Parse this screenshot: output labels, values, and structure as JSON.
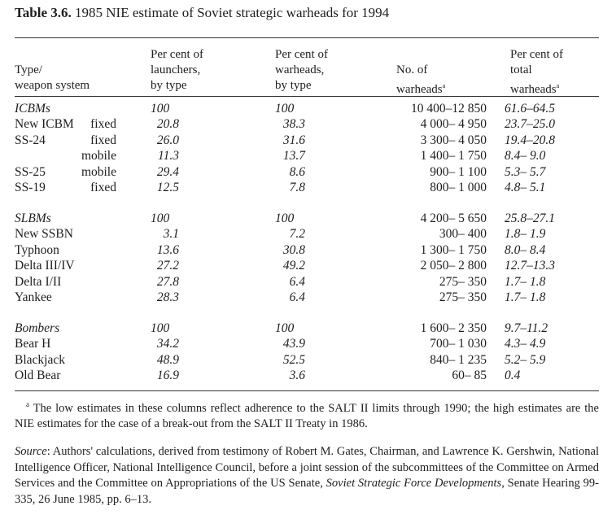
{
  "title": {
    "label": "Table 3.6.",
    "text": "1985 NIE estimate of Soviet strategic warheads for 1994"
  },
  "headers": {
    "type": [
      "Type/",
      "weapon system"
    ],
    "launchers": [
      "Per cent of",
      "launchers,",
      "by type"
    ],
    "warheads": [
      "Per cent of",
      "warheads,",
      "by type"
    ],
    "number": [
      "No. of",
      "warheads"
    ],
    "number_note": "a",
    "total": [
      "Per cent of",
      "total",
      "warheads"
    ],
    "total_note": "a"
  },
  "groups": [
    {
      "rows": [
        {
          "type": "ICBMs",
          "sub": "",
          "launchers": "100",
          "warheads": "100",
          "number": "10 400–12 850",
          "total": "61.6–64.5",
          "group": true
        },
        {
          "type": "New ICBM",
          "sub": "fixed",
          "launchers": "20.8",
          "warheads": "38.3",
          "number": "4 000– 4 950",
          "total": "23.7–25.0"
        },
        {
          "type": "SS-24",
          "sub": "fixed",
          "launchers": "26.0",
          "warheads": "31.6",
          "number": "3 300– 4 050",
          "total": "19.4–20.8"
        },
        {
          "type": "",
          "sub": "mobile",
          "launchers": "11.3",
          "warheads": "13.7",
          "number": "1 400– 1 750",
          "total": "8.4– 9.0"
        },
        {
          "type": "SS-25",
          "sub": "mobile",
          "launchers": "29.4",
          "warheads": "8.6",
          "number": "900– 1 100",
          "total": "5.3– 5.7"
        },
        {
          "type": "SS-19",
          "sub": "fixed",
          "launchers": "12.5",
          "warheads": "7.8",
          "number": "800– 1 000",
          "total": "4.8– 5.1"
        }
      ]
    },
    {
      "rows": [
        {
          "type": "SLBMs",
          "sub": "",
          "launchers": "100",
          "warheads": "100",
          "number": "4 200– 5 650",
          "total": "25.8–27.1",
          "group": true
        },
        {
          "type": "New SSBN",
          "sub": "",
          "launchers": "3.1",
          "warheads": "7.2",
          "number": "300– 400",
          "total": "1.8– 1.9"
        },
        {
          "type": "Typhoon",
          "sub": "",
          "launchers": "13.6",
          "warheads": "30.8",
          "number": "1 300– 1 750",
          "total": "8.0– 8.4"
        },
        {
          "type": "Delta III/IV",
          "sub": "",
          "launchers": "27.2",
          "warheads": "49.2",
          "number": "2 050– 2 800",
          "total": "12.7–13.3"
        },
        {
          "type": "Delta I/II",
          "sub": "",
          "launchers": "27.8",
          "warheads": "6.4",
          "number": "275– 350",
          "total": "1.7– 1.8"
        },
        {
          "type": "Yankee",
          "sub": "",
          "launchers": "28.3",
          "warheads": "6.4",
          "number": "275– 350",
          "total": "1.7– 1.8"
        }
      ]
    },
    {
      "rows": [
        {
          "type": "Bombers",
          "sub": "",
          "launchers": "100",
          "warheads": "100",
          "number": "1 600– 2 350",
          "total": "9.7–11.2",
          "group": true
        },
        {
          "type": "Bear H",
          "sub": "",
          "launchers": "34.2",
          "warheads": "43.9",
          "number": "700– 1 030",
          "total": "4.3– 4.9"
        },
        {
          "type": "Blackjack",
          "sub": "",
          "launchers": "48.9",
          "warheads": "52.5",
          "number": "840– 1 235",
          "total": "5.2– 5.9"
        },
        {
          "type": "Old Bear",
          "sub": "",
          "launchers": "16.9",
          "warheads": "3.6",
          "number": "60– 85",
          "total": "0.4"
        }
      ]
    }
  ],
  "footnote": {
    "mark": "a",
    "text": "The low estimates in these columns reflect adherence to the SALT II limits through 1990; the high estimates are the NIE estimates for the case of a break-out from the SALT II Treaty in 1986."
  },
  "source": {
    "label": "Source",
    "text_before": ": Authors' calculations, derived from testimony of Robert M. Gates, Chairman, and Lawrence K. Gershwin, National Intelligence Officer, National Intelligence Council, before a joint session of the subcommittees of the Committee on Armed Services and the Committee on Appropriations of the US Senate, ",
    "title": "Soviet Strategic Force Developments",
    "text_after": ", Senate Hearing 99-335, 26 June 1985, pp. 6–13."
  }
}
